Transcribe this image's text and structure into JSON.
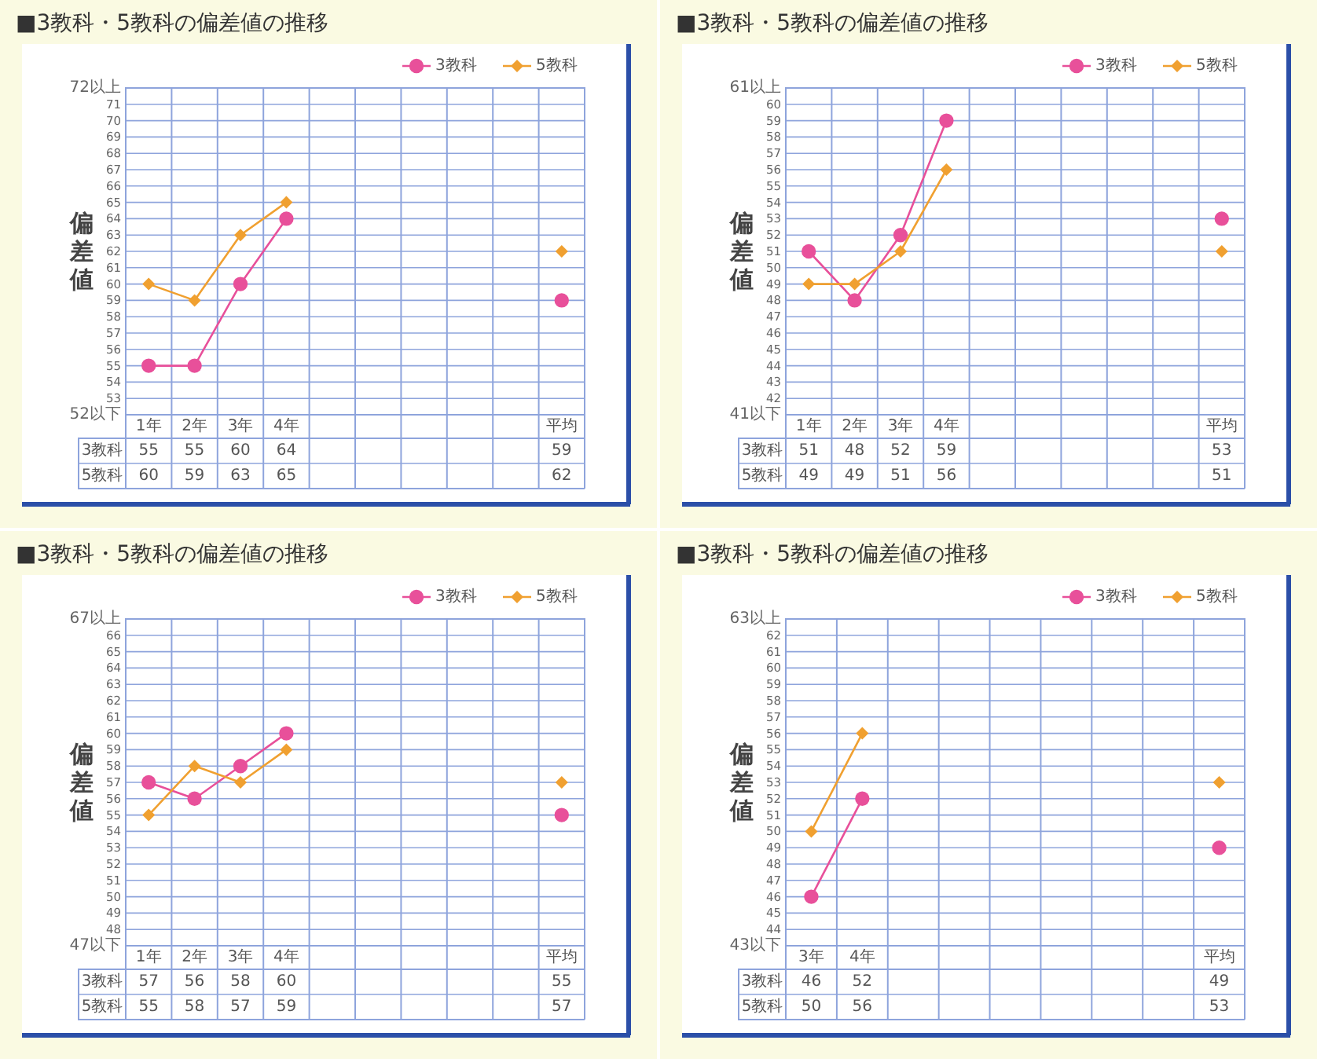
{
  "chart_data": [
    {
      "type": "line",
      "title": "■3教科・5教科の偏差値の推移",
      "ylabel": "偏差値",
      "categories": [
        "1年",
        "2年",
        "3年",
        "4年",
        null,
        null,
        null,
        null,
        null,
        "平均"
      ],
      "series": [
        {
          "name": "3教科",
          "color": "#e8509a",
          "marker": "circle",
          "values": [
            55,
            55,
            60,
            64,
            null,
            null,
            null,
            null,
            null,
            59
          ]
        },
        {
          "name": "5教科",
          "color": "#f0a030",
          "marker": "diamond",
          "values": [
            60,
            59,
            63,
            65,
            null,
            null,
            null,
            null,
            null,
            62
          ]
        }
      ],
      "ylim": [
        52,
        72
      ],
      "yticks": [
        {
          "value": 52,
          "label": "52以下"
        },
        53,
        54,
        55,
        56,
        57,
        58,
        59,
        60,
        61,
        62,
        63,
        64,
        65,
        66,
        67,
        68,
        69,
        70,
        71,
        {
          "value": 72,
          "label": "72以上"
        }
      ],
      "grid": true,
      "legend": "top right",
      "data_labels": true
    },
    {
      "type": "line",
      "title": "■3教科・5教科の偏差値の推移",
      "ylabel": "偏差値",
      "categories": [
        "1年",
        "2年",
        "3年",
        "4年",
        null,
        null,
        null,
        null,
        null,
        "平均"
      ],
      "series": [
        {
          "name": "3教科",
          "color": "#e8509a",
          "marker": "circle",
          "values": [
            51,
            48,
            52,
            59,
            null,
            null,
            null,
            null,
            null,
            53
          ]
        },
        {
          "name": "5教科",
          "color": "#f0a030",
          "marker": "diamond",
          "values": [
            49,
            49,
            51,
            56,
            null,
            null,
            null,
            null,
            null,
            51
          ]
        }
      ],
      "ylim": [
        41,
        61
      ],
      "yticks": [
        {
          "value": 41,
          "label": "41以下"
        },
        42,
        43,
        44,
        45,
        46,
        47,
        48,
        49,
        50,
        51,
        52,
        53,
        54,
        55,
        56,
        57,
        58,
        59,
        60,
        {
          "value": 61,
          "label": "61以上"
        }
      ],
      "grid": true,
      "legend": "top right",
      "data_labels": true
    },
    {
      "type": "line",
      "title": "■3教科・5教科の偏差値の推移",
      "ylabel": "偏差値",
      "categories": [
        "1年",
        "2年",
        "3年",
        "4年",
        null,
        null,
        null,
        null,
        null,
        "平均"
      ],
      "series": [
        {
          "name": "3教科",
          "color": "#e8509a",
          "marker": "circle",
          "values": [
            57,
            56,
            58,
            60,
            null,
            null,
            null,
            null,
            null,
            55
          ]
        },
        {
          "name": "5教科",
          "color": "#f0a030",
          "marker": "diamond",
          "values": [
            55,
            58,
            57,
            59,
            null,
            null,
            null,
            null,
            null,
            57
          ]
        }
      ],
      "ylim": [
        47,
        67
      ],
      "yticks": [
        {
          "value": 47,
          "label": "47以下"
        },
        48,
        49,
        50,
        51,
        52,
        53,
        54,
        55,
        56,
        57,
        58,
        59,
        60,
        61,
        62,
        63,
        64,
        65,
        66,
        {
          "value": 67,
          "label": "67以上"
        }
      ],
      "grid": true,
      "legend": "top right",
      "data_labels": true
    },
    {
      "type": "line",
      "title": "■3教科・5教科の偏差値の推移",
      "ylabel": "偏差値",
      "categories": [
        "3年",
        "4年",
        null,
        null,
        null,
        null,
        null,
        null,
        "平均"
      ],
      "series": [
        {
          "name": "3教科",
          "color": "#e8509a",
          "marker": "circle",
          "values": [
            46,
            52,
            null,
            null,
            null,
            null,
            null,
            null,
            49
          ]
        },
        {
          "name": "5教科",
          "color": "#f0a030",
          "marker": "diamond",
          "values": [
            50,
            56,
            null,
            null,
            null,
            null,
            null,
            null,
            53
          ]
        }
      ],
      "ylim": [
        43,
        63
      ],
      "yticks": [
        {
          "value": 43,
          "label": "43以下"
        },
        44,
        45,
        46,
        47,
        48,
        49,
        50,
        51,
        52,
        53,
        54,
        55,
        56,
        57,
        58,
        59,
        60,
        61,
        62,
        {
          "value": 63,
          "label": "63以上"
        }
      ],
      "grid": true,
      "legend": "top right",
      "data_labels": true
    }
  ]
}
